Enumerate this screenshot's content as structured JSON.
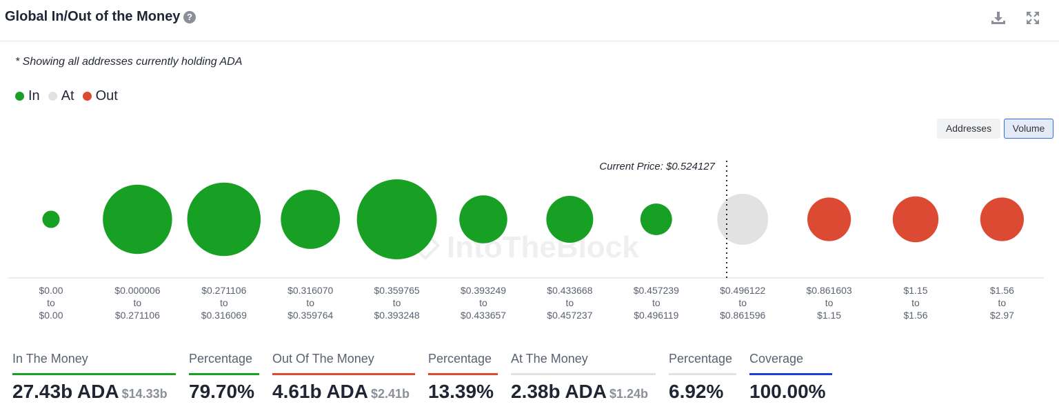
{
  "header": {
    "title": "Global In/Out of the Money",
    "help_icon": "question-circle-icon",
    "download_icon": "download-icon",
    "expand_icon": "expand-icon"
  },
  "note": "* Showing all addresses currently holding ADA",
  "legend": [
    {
      "label": "In",
      "color": "#18a025"
    },
    {
      "label": "At",
      "color": "#e2e2e2"
    },
    {
      "label": "Out",
      "color": "#dc4a34"
    }
  ],
  "toggles": {
    "addresses": "Addresses",
    "volume": "Volume",
    "active": "Volume"
  },
  "chart_data": {
    "type": "bubble",
    "title": "",
    "current_price_label": "Current Price: $0.524127",
    "current_price": 0.524127,
    "watermark": "IntoTheBlock",
    "size_metric": "Volume",
    "points": [
      {
        "from": "$0.00",
        "to": "$0.00",
        "status": "in",
        "volume_b": 0.15
      },
      {
        "from": "$0.000006",
        "to": "$0.271106",
        "status": "in",
        "volume_b": 2.4
      },
      {
        "from": "$0.271106",
        "to": "$0.316069",
        "status": "in",
        "volume_b": 2.7
      },
      {
        "from": "$0.316070",
        "to": "$0.359764",
        "status": "in",
        "volume_b": 1.75
      },
      {
        "from": "$0.359765",
        "to": "$0.393248",
        "status": "in",
        "volume_b": 3.2
      },
      {
        "from": "$0.393249",
        "to": "$0.433657",
        "status": "in",
        "volume_b": 1.15
      },
      {
        "from": "$0.433668",
        "to": "$0.457237",
        "status": "in",
        "volume_b": 1.1
      },
      {
        "from": "$0.457239",
        "to": "$0.496119",
        "status": "in",
        "volume_b": 0.5
      },
      {
        "from": "$0.496122",
        "to": "$0.861596",
        "status": "at",
        "volume_b": 1.3
      },
      {
        "from": "$0.861603",
        "to": "$1.15",
        "status": "out",
        "volume_b": 0.95
      },
      {
        "from": "$1.15",
        "to": "$1.56",
        "status": "out",
        "volume_b": 1.05
      },
      {
        "from": "$1.56",
        "to": "$2.97",
        "status": "out",
        "volume_b": 0.95
      }
    ],
    "range_word": "to"
  },
  "stats": [
    {
      "label": "In The Money",
      "value": "27.43b ADA",
      "sub": "$14.33b",
      "color": "#18a025"
    },
    {
      "label": "Percentage",
      "value": "79.70%",
      "sub": "",
      "color": "#18a025"
    },
    {
      "label": "Out Of The Money",
      "value": "4.61b ADA",
      "sub": "$2.41b",
      "color": "#dc4a34"
    },
    {
      "label": "Percentage",
      "value": "13.39%",
      "sub": "",
      "color": "#dc4a34"
    },
    {
      "label": "At The Money",
      "value": "2.38b ADA",
      "sub": "$1.24b",
      "color": "#e2e2e2"
    },
    {
      "label": "Percentage",
      "value": "6.92%",
      "sub": "",
      "color": "#e2e2e2"
    },
    {
      "label": "Coverage",
      "value": "100.00%",
      "sub": "",
      "color": "#1a3fd6"
    }
  ]
}
